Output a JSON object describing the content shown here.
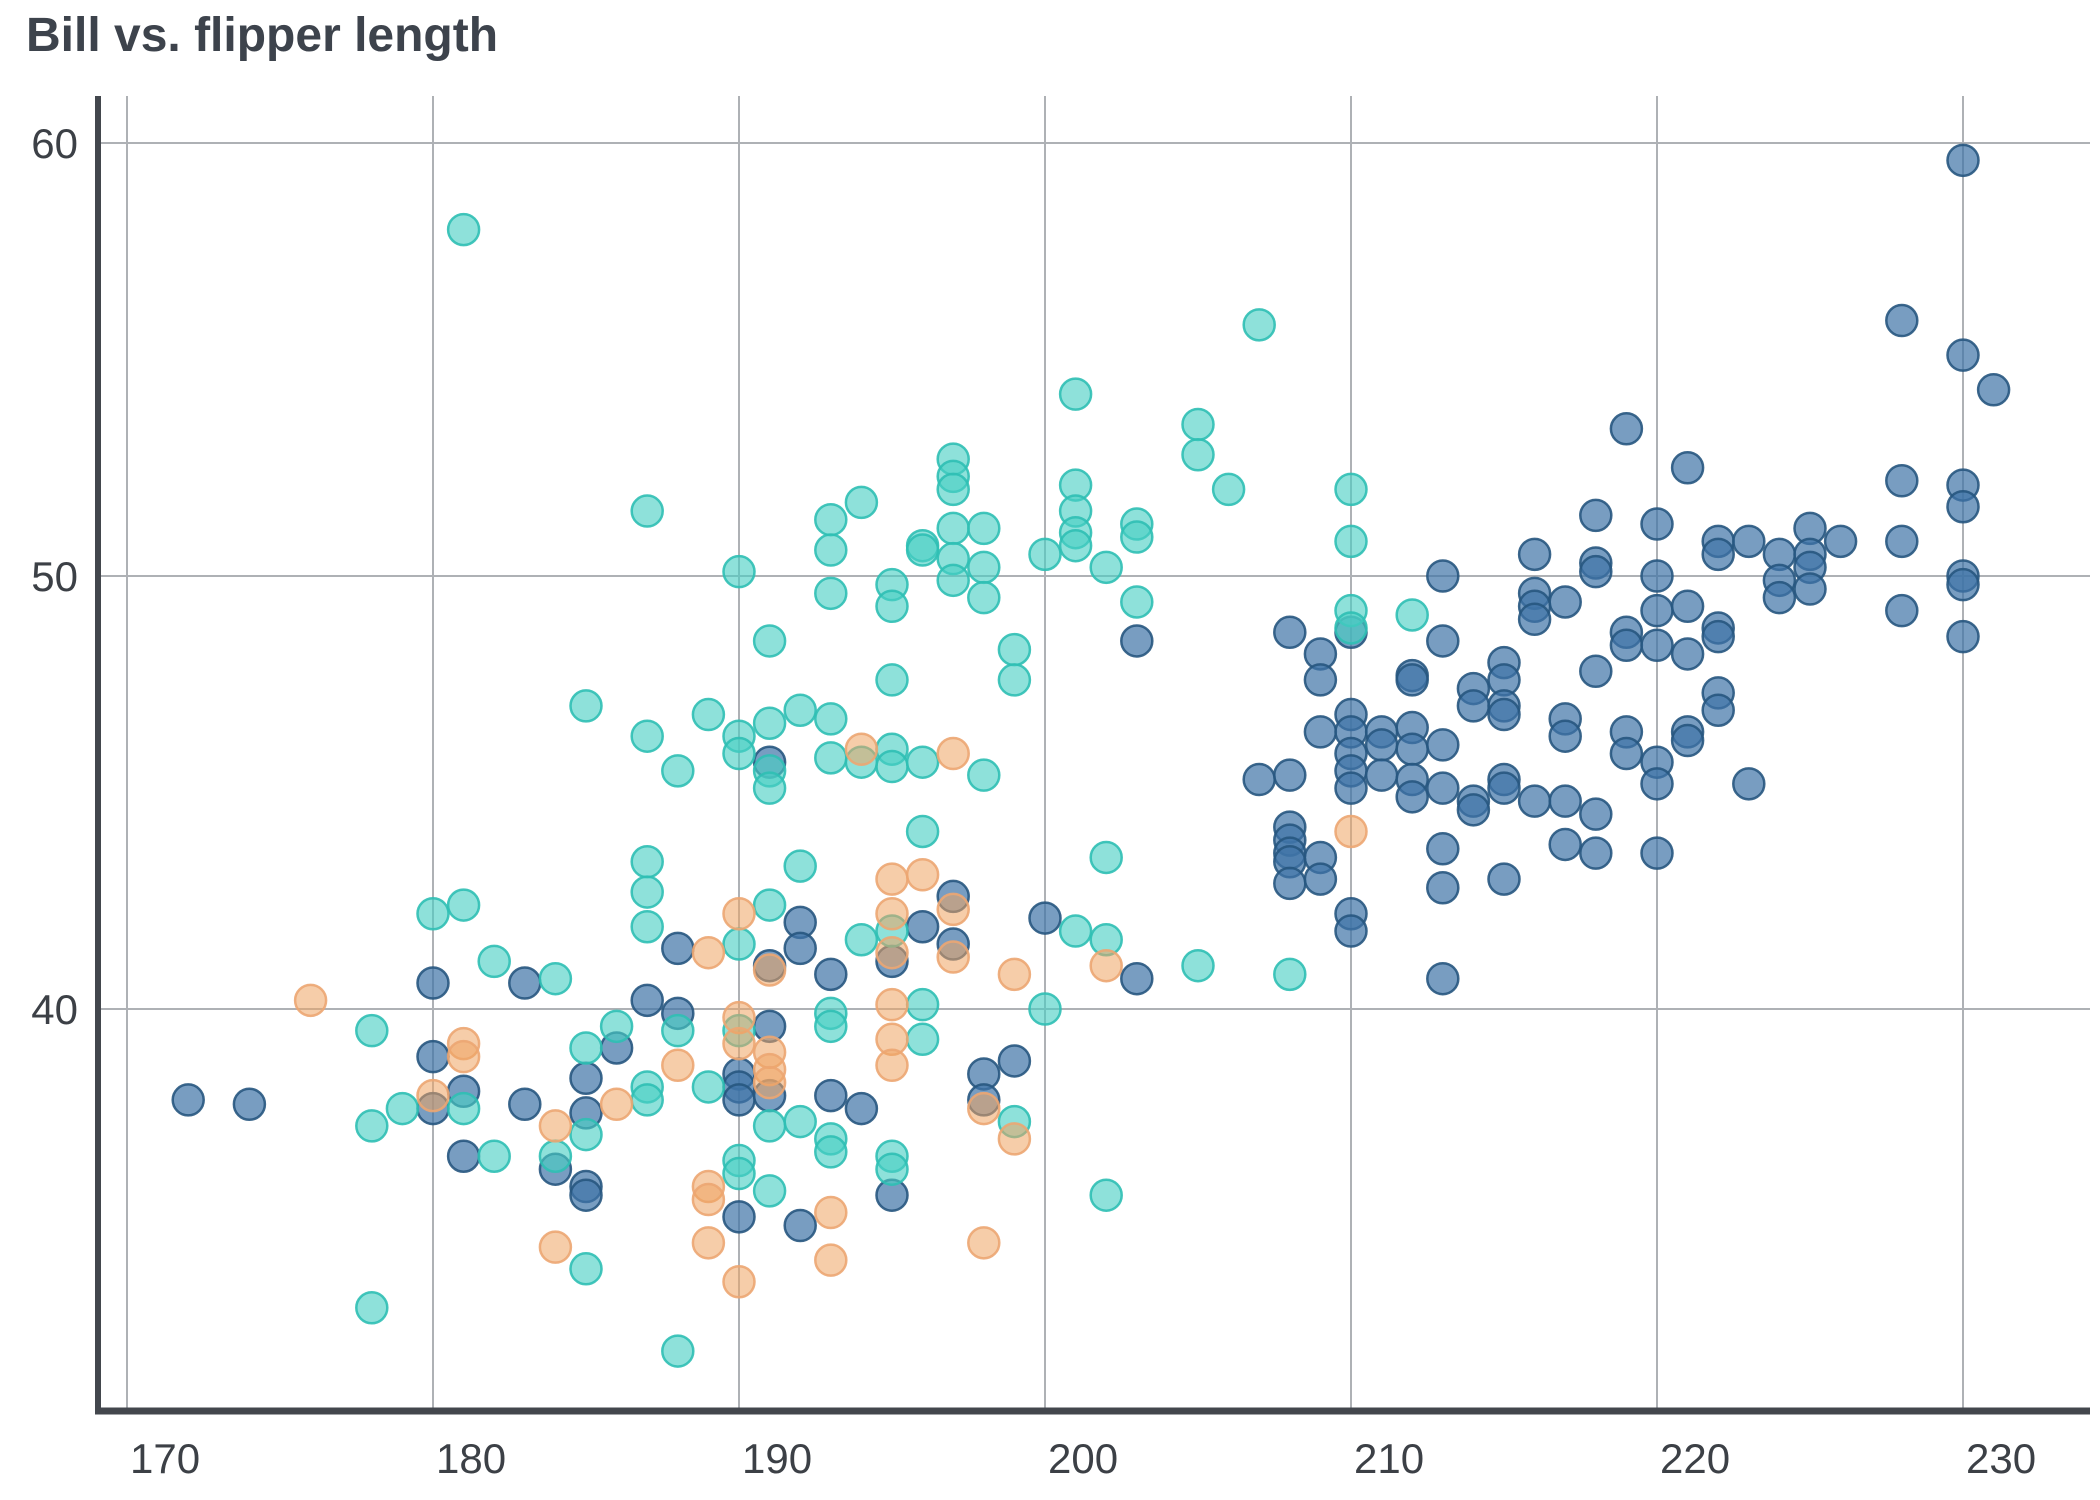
{
  "chart_data": {
    "type": "scatter",
    "title": "Bill vs. flipper length",
    "xlabel": "",
    "ylabel": "",
    "x_ticks": [
      170,
      180,
      190,
      200,
      210,
      220,
      230
    ],
    "y_ticks": [
      60,
      50,
      40
    ],
    "xlim": [
      169,
      234.5
    ],
    "ylim": [
      29.3,
      61.0
    ],
    "grid": true,
    "legend": "none",
    "marker": {
      "radius": 15.5,
      "stroke_width": 2.5
    },
    "axis_color": "#43474d",
    "grid_color": "#aeb1b5",
    "tick_label_color": "#3c4046",
    "title_color": "#3d434c",
    "series": [
      {
        "name": "blue",
        "fill": "#3e74a6",
        "fill_opacity": 0.7,
        "stroke": "#27567f",
        "stroke_opacity": 0.9,
        "points": [
          [
            172,
            37.9
          ],
          [
            174,
            37.8
          ],
          [
            180,
            38.9
          ],
          [
            180,
            37.7
          ],
          [
            180,
            40.6
          ],
          [
            181,
            38.1
          ],
          [
            181,
            36.6
          ],
          [
            183,
            37.8
          ],
          [
            183,
            40.6
          ],
          [
            184,
            36.3
          ],
          [
            185,
            35.9
          ],
          [
            185,
            35.7
          ],
          [
            185,
            38.4
          ],
          [
            185,
            37.6
          ],
          [
            186,
            39.1
          ],
          [
            187,
            40.2
          ],
          [
            188,
            39.9
          ],
          [
            188,
            41.4
          ],
          [
            190,
            38.5
          ],
          [
            190,
            38.2
          ],
          [
            190,
            37.9
          ],
          [
            190,
            35.2
          ],
          [
            191,
            39.6
          ],
          [
            191,
            38.0
          ],
          [
            191,
            41.0
          ],
          [
            191,
            45.7
          ],
          [
            192,
            42.0
          ],
          [
            192,
            41.4
          ],
          [
            192,
            35.0
          ],
          [
            193,
            40.8
          ],
          [
            193,
            38.0
          ],
          [
            194,
            37.7
          ],
          [
            195,
            41.1
          ],
          [
            195,
            35.7
          ],
          [
            196,
            41.9
          ],
          [
            197,
            42.6
          ],
          [
            197,
            41.5
          ],
          [
            198,
            38.5
          ],
          [
            198,
            37.9
          ],
          [
            199,
            38.8
          ],
          [
            200,
            42.1
          ],
          [
            203,
            40.7
          ],
          [
            203,
            48.5
          ],
          [
            207,
            45.3
          ],
          [
            208,
            45.4
          ],
          [
            208,
            44.2
          ],
          [
            208,
            43.9
          ],
          [
            208,
            43.6
          ],
          [
            208,
            43.4
          ],
          [
            208,
            42.9
          ],
          [
            208,
            48.7
          ],
          [
            209,
            43.5
          ],
          [
            209,
            43.0
          ],
          [
            209,
            46.4
          ],
          [
            209,
            48.2
          ],
          [
            209,
            47.6
          ],
          [
            210,
            46.8
          ],
          [
            210,
            46.4
          ],
          [
            210,
            45.9
          ],
          [
            210,
            45.5
          ],
          [
            210,
            45.1
          ],
          [
            210,
            42.2
          ],
          [
            210,
            41.8
          ],
          [
            210,
            48.7
          ],
          [
            211,
            46.4
          ],
          [
            211,
            46.1
          ],
          [
            211,
            45.4
          ],
          [
            212,
            47.7
          ],
          [
            212,
            47.6
          ],
          [
            212,
            46.5
          ],
          [
            212,
            46.0
          ],
          [
            212,
            45.3
          ],
          [
            212,
            44.9
          ],
          [
            213,
            50.0
          ],
          [
            213,
            48.5
          ],
          [
            213,
            46.1
          ],
          [
            213,
            45.1
          ],
          [
            213,
            43.7
          ],
          [
            213,
            42.8
          ],
          [
            213,
            40.7
          ],
          [
            214,
            47.4
          ],
          [
            214,
            47.0
          ],
          [
            214,
            44.8
          ],
          [
            214,
            44.6
          ],
          [
            215,
            48.0
          ],
          [
            215,
            47.6
          ],
          [
            215,
            47.0
          ],
          [
            215,
            46.8
          ],
          [
            215,
            45.3
          ],
          [
            215,
            45.1
          ],
          [
            215,
            43.0
          ],
          [
            216,
            50.5
          ],
          [
            216,
            49.6
          ],
          [
            216,
            49.3
          ],
          [
            216,
            49.0
          ],
          [
            216,
            44.8
          ],
          [
            217,
            49.4
          ],
          [
            217,
            46.7
          ],
          [
            217,
            46.3
          ],
          [
            217,
            44.8
          ],
          [
            217,
            43.8
          ],
          [
            218,
            51.4
          ],
          [
            218,
            50.3
          ],
          [
            218,
            50.1
          ],
          [
            218,
            47.8
          ],
          [
            218,
            44.5
          ],
          [
            218,
            43.6
          ],
          [
            219,
            53.4
          ],
          [
            219,
            48.7
          ],
          [
            219,
            48.4
          ],
          [
            219,
            46.4
          ],
          [
            219,
            45.9
          ],
          [
            220,
            51.2
          ],
          [
            220,
            50.0
          ],
          [
            220,
            49.2
          ],
          [
            220,
            48.4
          ],
          [
            220,
            45.7
          ],
          [
            220,
            45.2
          ],
          [
            220,
            43.6
          ],
          [
            221,
            52.5
          ],
          [
            221,
            49.3
          ],
          [
            221,
            48.2
          ],
          [
            221,
            46.4
          ],
          [
            221,
            46.2
          ],
          [
            222,
            50.8
          ],
          [
            222,
            50.5
          ],
          [
            222,
            48.8
          ],
          [
            222,
            48.6
          ],
          [
            222,
            47.3
          ],
          [
            222,
            46.9
          ],
          [
            223,
            50.8
          ],
          [
            223,
            45.2
          ],
          [
            224,
            50.5
          ],
          [
            224,
            49.9
          ],
          [
            224,
            49.5
          ],
          [
            225,
            51.1
          ],
          [
            225,
            50.5
          ],
          [
            225,
            50.2
          ],
          [
            225,
            49.7
          ],
          [
            226,
            50.8
          ],
          [
            228,
            55.9
          ],
          [
            228,
            52.2
          ],
          [
            228,
            50.8
          ],
          [
            228,
            49.2
          ],
          [
            230,
            59.6
          ],
          [
            230,
            55.1
          ],
          [
            230,
            52.1
          ],
          [
            230,
            51.6
          ],
          [
            230,
            50.0
          ],
          [
            230,
            49.8
          ],
          [
            230,
            48.6
          ],
          [
            231,
            54.3
          ]
        ]
      },
      {
        "name": "teal",
        "fill": "#49cec4",
        "fill_opacity": 0.62,
        "stroke": "#2fbfb4",
        "stroke_opacity": 0.9,
        "points": [
          [
            178,
            33.1
          ],
          [
            178,
            39.5
          ],
          [
            178,
            37.3
          ],
          [
            179,
            37.7
          ],
          [
            180,
            42.2
          ],
          [
            181,
            58.0
          ],
          [
            181,
            42.4
          ],
          [
            181,
            37.7
          ],
          [
            182,
            41.1
          ],
          [
            182,
            36.6
          ],
          [
            184,
            40.7
          ],
          [
            184,
            36.6
          ],
          [
            185,
            47.0
          ],
          [
            185,
            39.1
          ],
          [
            185,
            37.1
          ],
          [
            185,
            34.0
          ],
          [
            186,
            39.6
          ],
          [
            187,
            51.5
          ],
          [
            187,
            46.3
          ],
          [
            187,
            43.4
          ],
          [
            187,
            42.7
          ],
          [
            187,
            41.9
          ],
          [
            187,
            38.2
          ],
          [
            187,
            37.9
          ],
          [
            188,
            45.5
          ],
          [
            188,
            39.5
          ],
          [
            188,
            32.1
          ],
          [
            189,
            46.8
          ],
          [
            189,
            38.2
          ],
          [
            190,
            50.1
          ],
          [
            190,
            46.3
          ],
          [
            190,
            45.9
          ],
          [
            190,
            41.5
          ],
          [
            190,
            39.5
          ],
          [
            190,
            36.5
          ],
          [
            190,
            36.2
          ],
          [
            191,
            48.5
          ],
          [
            191,
            46.6
          ],
          [
            191,
            45.5
          ],
          [
            191,
            45.1
          ],
          [
            191,
            42.4
          ],
          [
            191,
            37.3
          ],
          [
            191,
            35.8
          ],
          [
            192,
            46.9
          ],
          [
            192,
            43.3
          ],
          [
            192,
            37.4
          ],
          [
            193,
            51.3
          ],
          [
            193,
            50.6
          ],
          [
            193,
            49.6
          ],
          [
            193,
            46.7
          ],
          [
            193,
            45.8
          ],
          [
            193,
            39.9
          ],
          [
            193,
            39.6
          ],
          [
            193,
            37.0
          ],
          [
            193,
            36.7
          ],
          [
            194,
            51.7
          ],
          [
            194,
            45.7
          ],
          [
            194,
            41.6
          ],
          [
            195,
            49.8
          ],
          [
            195,
            49.3
          ],
          [
            195,
            47.6
          ],
          [
            195,
            46.0
          ],
          [
            195,
            45.6
          ],
          [
            195,
            41.8
          ],
          [
            195,
            36.6
          ],
          [
            195,
            36.3
          ],
          [
            196,
            50.7
          ],
          [
            196,
            50.6
          ],
          [
            196,
            45.7
          ],
          [
            196,
            44.1
          ],
          [
            196,
            40.1
          ],
          [
            196,
            39.3
          ],
          [
            197,
            52.7
          ],
          [
            197,
            52.3
          ],
          [
            197,
            52.0
          ],
          [
            197,
            51.1
          ],
          [
            197,
            50.4
          ],
          [
            197,
            49.9
          ],
          [
            198,
            51.1
          ],
          [
            198,
            50.2
          ],
          [
            198,
            49.5
          ],
          [
            198,
            45.4
          ],
          [
            199,
            48.3
          ],
          [
            199,
            47.6
          ],
          [
            199,
            37.4
          ],
          [
            200,
            50.5
          ],
          [
            200,
            40.0
          ],
          [
            201,
            54.2
          ],
          [
            201,
            52.1
          ],
          [
            201,
            51.5
          ],
          [
            201,
            51.0
          ],
          [
            201,
            50.7
          ],
          [
            201,
            41.8
          ],
          [
            202,
            50.2
          ],
          [
            202,
            43.5
          ],
          [
            202,
            41.6
          ],
          [
            202,
            35.7
          ],
          [
            203,
            51.2
          ],
          [
            203,
            50.9
          ],
          [
            203,
            49.4
          ],
          [
            205,
            53.5
          ],
          [
            205,
            52.8
          ],
          [
            205,
            41.0
          ],
          [
            206,
            52.0
          ],
          [
            207,
            55.8
          ],
          [
            208,
            40.8
          ],
          [
            210,
            52.0
          ],
          [
            210,
            50.8
          ],
          [
            210,
            49.2
          ],
          [
            210,
            48.8
          ],
          [
            212,
            49.1
          ]
        ]
      },
      {
        "name": "orange",
        "fill": "#efa463",
        "fill_opacity": 0.55,
        "stroke": "#eca672",
        "stroke_opacity": 0.9,
        "points": [
          [
            176,
            40.2
          ],
          [
            180,
            38.0
          ],
          [
            181,
            39.2
          ],
          [
            181,
            38.9
          ],
          [
            184,
            37.3
          ],
          [
            184,
            34.5
          ],
          [
            186,
            37.8
          ],
          [
            188,
            38.7
          ],
          [
            189,
            41.3
          ],
          [
            189,
            35.9
          ],
          [
            189,
            35.6
          ],
          [
            189,
            34.6
          ],
          [
            190,
            42.2
          ],
          [
            190,
            39.8
          ],
          [
            190,
            39.2
          ],
          [
            190,
            33.7
          ],
          [
            191,
            40.9
          ],
          [
            191,
            39.0
          ],
          [
            191,
            38.6
          ],
          [
            191,
            38.3
          ],
          [
            193,
            35.3
          ],
          [
            193,
            34.2
          ],
          [
            194,
            46.0
          ],
          [
            195,
            43.0
          ],
          [
            195,
            42.2
          ],
          [
            195,
            41.3
          ],
          [
            195,
            40.1
          ],
          [
            195,
            39.3
          ],
          [
            195,
            38.7
          ],
          [
            196,
            43.1
          ],
          [
            197,
            45.9
          ],
          [
            197,
            42.3
          ],
          [
            197,
            41.2
          ],
          [
            198,
            37.7
          ],
          [
            198,
            34.6
          ],
          [
            199,
            40.8
          ],
          [
            199,
            37.0
          ],
          [
            202,
            41.0
          ],
          [
            210,
            44.1
          ]
        ]
      }
    ]
  }
}
